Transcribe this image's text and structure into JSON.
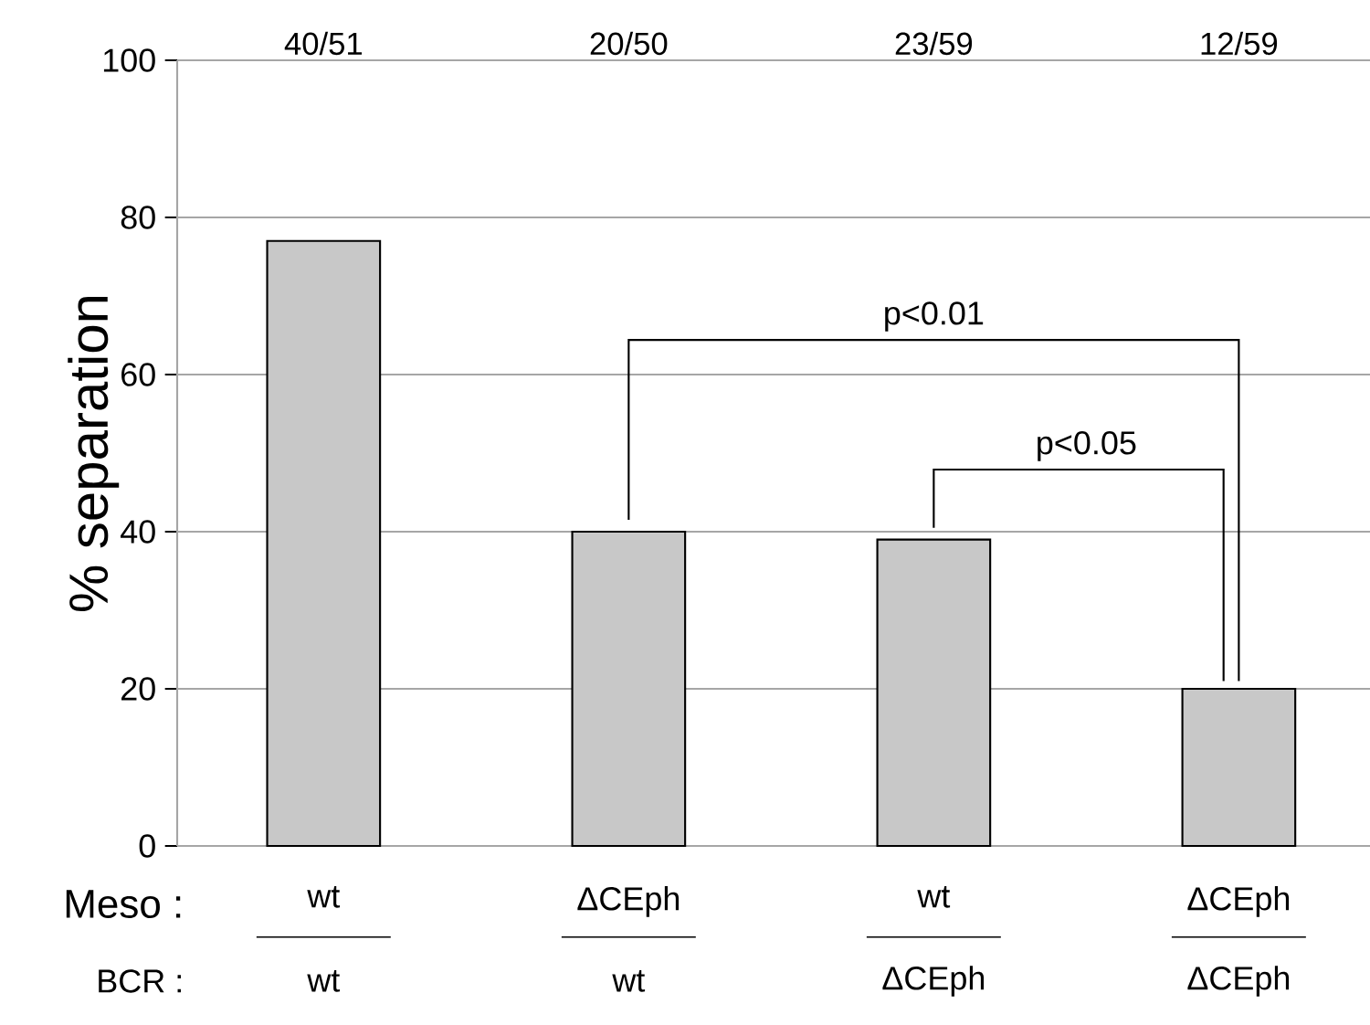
{
  "chart_data": {
    "type": "bar",
    "ylabel": "% separation",
    "categories": [
      "wt",
      "ΔCEph",
      "wt",
      "ΔCEph"
    ],
    "values": [
      77,
      40,
      39,
      20
    ],
    "color": "#c8c8c8",
    "ylim": [
      0,
      100
    ],
    "yticks": [
      0,
      20,
      40,
      60,
      80,
      100
    ],
    "grid": "y",
    "annotations": [
      "p<0.01",
      "p<0.05",
      "Meso :",
      "BCR :",
      "wt",
      "wt",
      "ΔCEph",
      "ΔCEph",
      "40/51",
      "20/50",
      "23/59",
      "12/59"
    ]
  }
}
